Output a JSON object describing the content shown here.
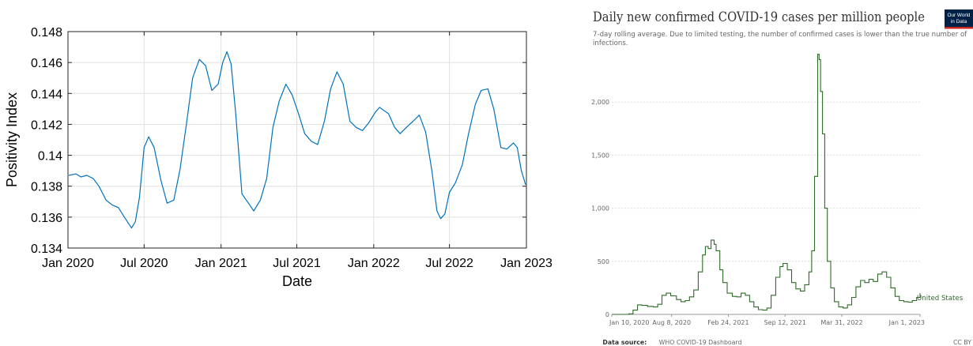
{
  "chart_data": [
    {
      "type": "line",
      "title": "",
      "xlabel": "Date",
      "ylabel": "Positivity Index",
      "ylim": [
        0.134,
        0.148
      ],
      "yticks": [
        "0.134",
        "0.136",
        "0.138",
        "0.14",
        "0.142",
        "0.144",
        "0.146",
        "0.148"
      ],
      "xticks": [
        "Jan 2020",
        "Jul 2020",
        "Jan 2021",
        "Jul 2021",
        "Jan 2022",
        "Jul 2022",
        "Jan 2023"
      ],
      "xlim": [
        "2020-01-01",
        "2023-01-01"
      ],
      "grid": true,
      "line_color": "#0072bd",
      "series": [
        {
          "x": [
            "2020-01-03",
            "2020-01-20",
            "2020-02-01",
            "2020-02-15",
            "2020-03-01",
            "2020-03-15",
            "2020-04-01",
            "2020-04-15",
            "2020-05-01",
            "2020-05-15",
            "2020-06-01",
            "2020-06-10",
            "2020-06-20",
            "2020-07-01",
            "2020-07-12",
            "2020-07-25",
            "2020-08-10",
            "2020-08-25",
            "2020-09-10",
            "2020-09-25",
            "2020-10-10",
            "2020-10-25",
            "2020-11-10",
            "2020-11-25",
            "2020-12-10",
            "2020-12-25",
            "2021-01-05",
            "2021-01-15",
            "2021-01-25",
            "2021-02-05",
            "2021-02-20",
            "2021-03-05",
            "2021-03-20",
            "2021-04-05",
            "2021-04-20",
            "2021-05-05",
            "2021-05-20",
            "2021-06-05",
            "2021-06-20",
            "2021-07-05",
            "2021-07-20",
            "2021-08-05",
            "2021-08-20",
            "2021-09-05",
            "2021-09-20",
            "2021-10-05",
            "2021-10-20",
            "2021-11-05",
            "2021-11-20",
            "2021-12-05",
            "2021-12-20",
            "2022-01-05",
            "2022-01-15",
            "2022-01-25",
            "2022-02-05",
            "2022-02-20",
            "2022-03-05",
            "2022-03-20",
            "2022-04-05",
            "2022-04-20",
            "2022-05-05",
            "2022-05-20",
            "2022-06-01",
            "2022-06-10",
            "2022-06-20",
            "2022-07-01",
            "2022-07-15",
            "2022-08-01",
            "2022-08-15",
            "2022-09-01",
            "2022-09-15",
            "2022-10-01",
            "2022-10-15",
            "2022-11-01",
            "2022-11-15",
            "2022-12-01",
            "2022-12-10",
            "2022-12-20",
            "2022-12-30"
          ],
          "y": [
            0.1387,
            0.1388,
            0.1386,
            0.1387,
            0.1385,
            0.138,
            0.1371,
            0.1368,
            0.1366,
            0.136,
            0.1353,
            0.1357,
            0.1373,
            0.1405,
            0.1412,
            0.1405,
            0.1384,
            0.1369,
            0.1371,
            0.1391,
            0.142,
            0.145,
            0.1462,
            0.1458,
            0.1442,
            0.1446,
            0.146,
            0.1467,
            0.1459,
            0.1427,
            0.1375,
            0.137,
            0.1364,
            0.1371,
            0.1385,
            0.1418,
            0.1435,
            0.1446,
            0.1439,
            0.1427,
            0.1414,
            0.1409,
            0.1407,
            0.1422,
            0.1443,
            0.1454,
            0.1446,
            0.1422,
            0.1418,
            0.1416,
            0.1421,
            0.1428,
            0.1431,
            0.1429,
            0.1427,
            0.1418,
            0.1414,
            0.1418,
            0.1422,
            0.1426,
            0.1415,
            0.139,
            0.1364,
            0.1359,
            0.1362,
            0.1376,
            0.1382,
            0.1394,
            0.1413,
            0.1433,
            0.1442,
            0.1443,
            0.143,
            0.1405,
            0.1404,
            0.1408,
            0.1405,
            0.139,
            0.1381
          ]
        }
      ]
    },
    {
      "type": "area",
      "title": "Daily new confirmed COVID-19 cases per million people",
      "subtitle": "7-day rolling average. Due to limited testing, the number of confirmed cases is lower than the true number of infections.",
      "logo": "Our World in Data",
      "xlabel": "",
      "ylabel": "",
      "ylim": [
        0,
        2500
      ],
      "yticks": [
        "0",
        "500",
        "1,000",
        "1,500",
        "2,000"
      ],
      "xticks": [
        "Jan 10, 2020",
        "Aug 8, 2020",
        "Feb 24, 2021",
        "Sep 12, 2021",
        "Mar 31, 2022",
        "Jan 1, 2023"
      ],
      "xlim": [
        "2020-01-10",
        "2023-01-01"
      ],
      "grid": true,
      "line_color": "#2e6b27",
      "source_label": "Data source:",
      "source": "WHO COVID-19 Dashboard",
      "license": "CC BY",
      "series": [
        {
          "name": "United States",
          "x": [
            "2020-01-10",
            "2020-02-15",
            "2020-03-10",
            "2020-03-25",
            "2020-04-10",
            "2020-04-25",
            "2020-05-15",
            "2020-06-05",
            "2020-06-20",
            "2020-07-05",
            "2020-07-20",
            "2020-08-05",
            "2020-08-25",
            "2020-09-10",
            "2020-09-25",
            "2020-10-10",
            "2020-10-25",
            "2020-11-10",
            "2020-11-25",
            "2020-12-05",
            "2020-12-15",
            "2020-12-25",
            "2021-01-05",
            "2021-01-12",
            "2021-01-25",
            "2021-02-05",
            "2021-02-20",
            "2021-03-10",
            "2021-03-25",
            "2021-04-10",
            "2021-04-25",
            "2021-05-10",
            "2021-05-25",
            "2021-06-10",
            "2021-06-25",
            "2021-07-10",
            "2021-07-25",
            "2021-08-10",
            "2021-08-25",
            "2021-09-05",
            "2021-09-20",
            "2021-10-05",
            "2021-10-20",
            "2021-11-05",
            "2021-11-20",
            "2021-12-05",
            "2021-12-15",
            "2021-12-25",
            "2022-01-05",
            "2022-01-10",
            "2022-01-15",
            "2022-01-22",
            "2022-01-30",
            "2022-02-08",
            "2022-02-20",
            "2022-03-05",
            "2022-03-20",
            "2022-04-05",
            "2022-04-20",
            "2022-05-05",
            "2022-05-20",
            "2022-06-05",
            "2022-06-20",
            "2022-07-05",
            "2022-07-20",
            "2022-08-05",
            "2022-08-20",
            "2022-09-05",
            "2022-09-20",
            "2022-10-05",
            "2022-10-20",
            "2022-11-05",
            "2022-11-20",
            "2022-12-05",
            "2022-12-20",
            "2023-01-01"
          ],
          "y": [
            0,
            0,
            5,
            40,
            90,
            85,
            75,
            70,
            95,
            180,
            200,
            175,
            140,
            120,
            130,
            165,
            230,
            400,
            560,
            640,
            620,
            700,
            660,
            600,
            420,
            300,
            200,
            170,
            165,
            200,
            180,
            120,
            70,
            45,
            40,
            60,
            180,
            350,
            450,
            480,
            420,
            300,
            240,
            220,
            280,
            400,
            600,
            1300,
            2450,
            2400,
            2100,
            1700,
            1000,
            500,
            250,
            120,
            70,
            60,
            90,
            160,
            260,
            320,
            300,
            330,
            310,
            380,
            400,
            350,
            250,
            170,
            130,
            120,
            115,
            130,
            160,
            200
          ]
        }
      ]
    }
  ]
}
